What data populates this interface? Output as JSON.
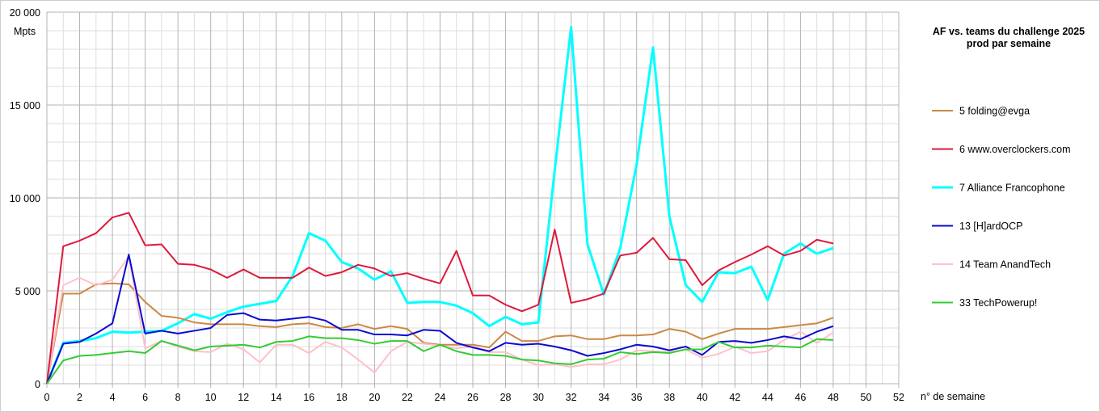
{
  "chart_data": {
    "type": "line",
    "title": "AF vs. teams du challenge 2025",
    "subtitle": "prod par semaine",
    "xlabel": "n° de semaine",
    "ylabel": "Mpts",
    "xlim": [
      0,
      52
    ],
    "ylim": [
      0,
      20000
    ],
    "x_ticks": [
      0,
      2,
      4,
      6,
      8,
      10,
      12,
      14,
      16,
      18,
      20,
      22,
      24,
      26,
      28,
      30,
      32,
      34,
      36,
      38,
      40,
      42,
      44,
      46,
      48,
      50,
      52
    ],
    "y_ticks": [
      0,
      5000,
      10000,
      15000,
      20000
    ],
    "y_tick_labels": [
      "0",
      "5 000",
      "10 000",
      "15 000",
      "20 000"
    ],
    "grid": true,
    "legend_position": "right",
    "x": [
      0,
      1,
      2,
      3,
      4,
      5,
      6,
      7,
      8,
      9,
      10,
      11,
      12,
      13,
      14,
      15,
      16,
      17,
      18,
      19,
      20,
      21,
      22,
      23,
      24,
      25,
      26,
      27,
      28,
      29,
      30,
      31,
      32,
      33,
      34,
      35,
      36,
      37,
      38,
      39,
      40,
      41,
      42,
      43,
      44,
      45,
      46,
      47,
      48
    ],
    "series": [
      {
        "name": "5 folding@evga",
        "color": "#cc8844",
        "width": 2,
        "values": [
          0,
          4850,
          4850,
          5350,
          5400,
          5350,
          4400,
          3650,
          3550,
          3300,
          3200,
          3200,
          3200,
          3100,
          3050,
          3200,
          3250,
          3050,
          3000,
          3200,
          2950,
          3100,
          2950,
          2200,
          2100,
          2100,
          2100,
          1950,
          2800,
          2300,
          2300,
          2550,
          2600,
          2400,
          2400,
          2600,
          2600,
          2650,
          2950,
          2800,
          2400,
          2700,
          2950,
          2950,
          2950,
          3050,
          3150,
          3250,
          3550
        ]
      },
      {
        "name": "6 www.overclockers.com",
        "color": "#dd1a3c",
        "width": 2,
        "values": [
          0,
          7400,
          7700,
          8100,
          8950,
          9200,
          7450,
          7500,
          6450,
          6400,
          6150,
          5700,
          6150,
          5700,
          5700,
          5700,
          6250,
          5800,
          6000,
          6400,
          6200,
          5800,
          5950,
          5650,
          5400,
          7150,
          4750,
          4750,
          4250,
          3900,
          4250,
          8300,
          4350,
          4550,
          4850,
          6900,
          7050,
          7850,
          6700,
          6650,
          5300,
          6100,
          6550,
          6950,
          7400,
          6900,
          7150,
          7750,
          7550
        ]
      },
      {
        "name": "7 Alliance Francophone",
        "color": "#00ffff",
        "width": 3,
        "values": [
          0,
          2200,
          2300,
          2450,
          2800,
          2750,
          2800,
          2850,
          3250,
          3750,
          3500,
          3850,
          4150,
          4300,
          4450,
          5800,
          8100,
          7700,
          6550,
          6200,
          5600,
          6050,
          4350,
          4400,
          4400,
          4200,
          3800,
          3100,
          3600,
          3200,
          3300,
          11500,
          19200,
          7500,
          4800,
          7300,
          11800,
          18100,
          9000,
          5300,
          4400,
          6000,
          5950,
          6300,
          4500,
          7000,
          7550,
          7000,
          7300
        ]
      },
      {
        "name": "13 [H]ardOCP",
        "color": "#0a0ad0",
        "width": 2,
        "values": [
          0,
          2150,
          2250,
          2700,
          3250,
          6950,
          2700,
          2850,
          2700,
          2850,
          3000,
          3700,
          3800,
          3450,
          3400,
          3500,
          3600,
          3400,
          2900,
          2900,
          2650,
          2650,
          2600,
          2900,
          2850,
          2200,
          1950,
          1750,
          2200,
          2100,
          2150,
          2000,
          1800,
          1500,
          1650,
          1850,
          2100,
          2000,
          1800,
          2000,
          1550,
          2250,
          2300,
          2200,
          2350,
          2550,
          2400,
          2800,
          3100
        ]
      },
      {
        "name": "14 Team AnandTech",
        "color": "#ffc0cb",
        "width": 2,
        "values": [
          0,
          5300,
          5700,
          5300,
          5600,
          6850,
          1900,
          2300,
          2000,
          1750,
          1700,
          2150,
          1850,
          1150,
          2100,
          2100,
          1650,
          2250,
          1950,
          1300,
          600,
          1750,
          2250,
          2150,
          2050,
          1900,
          2000,
          1700,
          1700,
          1300,
          1000,
          1050,
          900,
          1050,
          1050,
          1300,
          1800,
          1750,
          1700,
          1850,
          1400,
          1600,
          2000,
          1650,
          1750,
          2350,
          2800,
          2200,
          2750
        ]
      },
      {
        "name": "33 TechPowerup!",
        "color": "#33cc33",
        "width": 2,
        "values": [
          0,
          1250,
          1500,
          1550,
          1650,
          1750,
          1650,
          2300,
          2050,
          1800,
          2000,
          2050,
          2100,
          1950,
          2250,
          2300,
          2550,
          2450,
          2450,
          2350,
          2150,
          2300,
          2300,
          1750,
          2100,
          1750,
          1550,
          1550,
          1500,
          1300,
          1250,
          1100,
          1050,
          1300,
          1350,
          1700,
          1600,
          1700,
          1650,
          1850,
          1850,
          2250,
          1950,
          1950,
          2050,
          2000,
          1950,
          2400,
          2350
        ]
      }
    ]
  }
}
